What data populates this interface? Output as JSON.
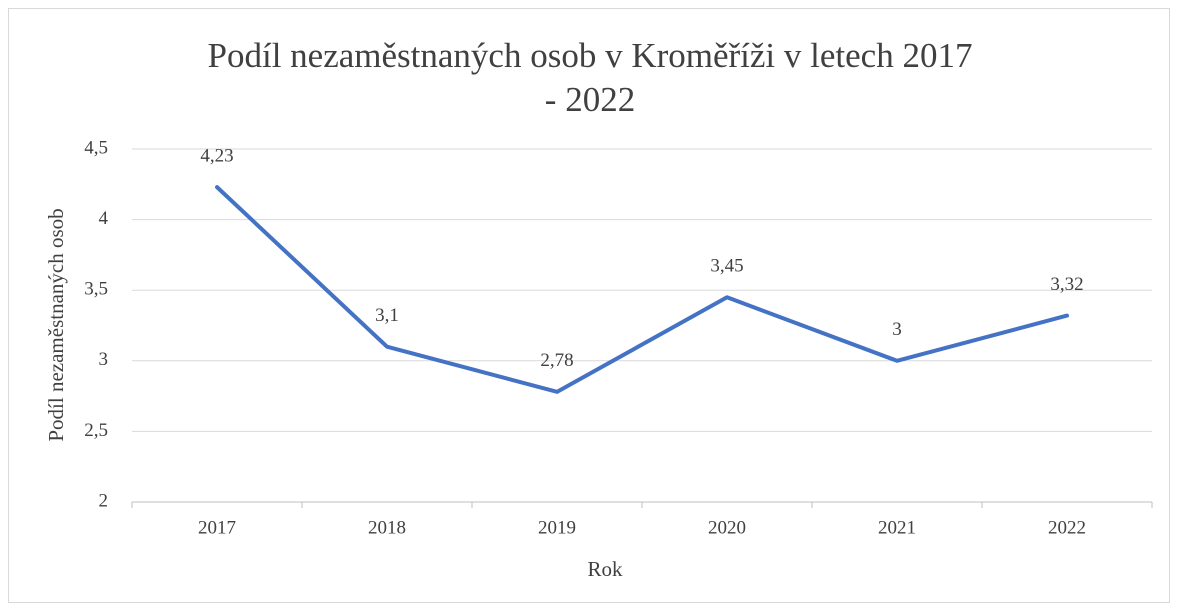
{
  "chart_data": {
    "type": "line",
    "title": "Podíl nezaměstnaných osob v Kroměříži v letech 2017 - 2022",
    "x_label": "Rok",
    "y_label": "Podíl nezaměstnaných osob",
    "categories": [
      "2017",
      "2018",
      "2019",
      "2020",
      "2021",
      "2022"
    ],
    "values": [
      4.23,
      3.1,
      2.78,
      3.45,
      3,
      3.32
    ],
    "value_labels": [
      "4,23",
      "3,1",
      "2,78",
      "3,45",
      "3",
      "3,32"
    ],
    "color": "#4472c4",
    "ylim": [
      2,
      4.5
    ],
    "yticks": [
      2,
      {
        "value": 2.5,
        "label": "2,5"
      },
      3,
      {
        "value": 3.5,
        "label": "3,5"
      },
      4,
      {
        "value": 4.5,
        "label": "4,5"
      }
    ],
    "grid": true
  }
}
